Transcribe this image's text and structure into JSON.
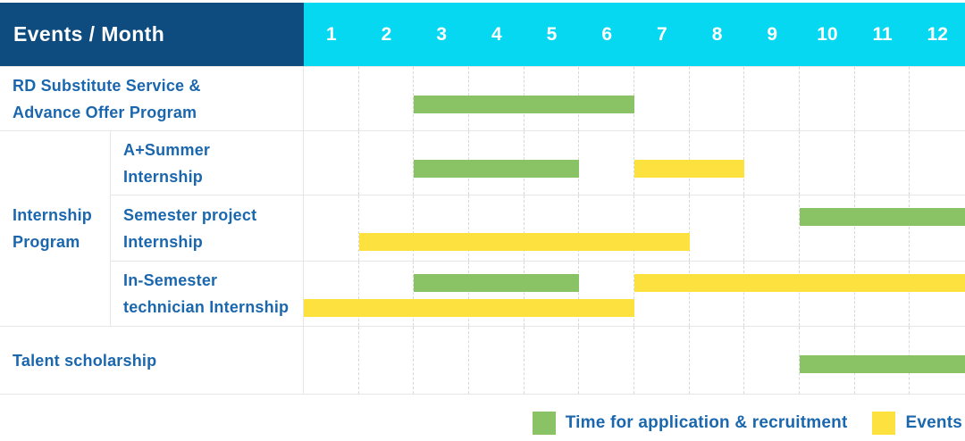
{
  "header": {
    "label": "Events / Month",
    "months": [
      "1",
      "2",
      "3",
      "4",
      "5",
      "6",
      "7",
      "8",
      "9",
      "10",
      "11",
      "12"
    ]
  },
  "colors": {
    "header_bg": "#0e4c80",
    "months_bg": "#05d8f0",
    "application_green": "#8ac266",
    "event_yellow": "#fde23f",
    "label_text": "#1b67ae",
    "grid_line": "#e6e6e6",
    "grid_dash": "#d8d8d8"
  },
  "chart_data": {
    "type": "gantt",
    "title": "Events / Month",
    "x_unit": "month",
    "x_range": [
      1,
      12
    ],
    "group": {
      "label_lines": [
        "Internship",
        "Program"
      ]
    },
    "rows": [
      {
        "label_lines": [
          "RD Substitute Service &",
          "Advance Offer Program"
        ],
        "group": null,
        "bars": [
          {
            "type": "application",
            "start": 3,
            "end": 6,
            "lane": "mid"
          }
        ]
      },
      {
        "label_lines": [
          "A+Summer",
          "Internship"
        ],
        "group": "Internship Program",
        "bars": [
          {
            "type": "application",
            "start": 3,
            "end": 5,
            "lane": "mid"
          },
          {
            "type": "event",
            "start": 7,
            "end": 8,
            "lane": "mid"
          }
        ]
      },
      {
        "label_lines": [
          "Semester project",
          "Internship"
        ],
        "group": "Internship Program",
        "bars": [
          {
            "type": "application",
            "start": 10,
            "end": 12,
            "lane": "upper"
          },
          {
            "type": "event",
            "start": 2,
            "end": 7,
            "lane": "lower"
          }
        ]
      },
      {
        "label_lines": [
          "In-Semester",
          "technician Internship"
        ],
        "group": "Internship Program",
        "bars": [
          {
            "type": "application",
            "start": 3,
            "end": 5,
            "lane": "upper"
          },
          {
            "type": "event",
            "start": 7,
            "end": 12,
            "lane": "upper"
          },
          {
            "type": "event",
            "start": 1,
            "end": 6,
            "lane": "lower"
          }
        ]
      },
      {
        "label_lines": [
          "Talent scholarship"
        ],
        "group": null,
        "bars": [
          {
            "type": "application",
            "start": 10,
            "end": 12,
            "lane": "mid"
          }
        ]
      }
    ],
    "legend": [
      {
        "swatch": "application_green",
        "label": "Time for application & recruitment"
      },
      {
        "swatch": "event_yellow",
        "label": "Events"
      }
    ]
  }
}
